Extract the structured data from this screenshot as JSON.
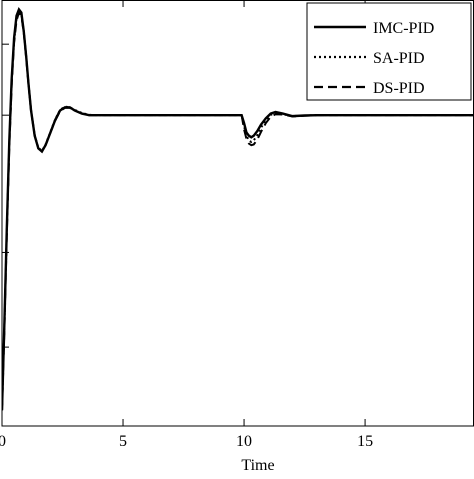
{
  "chart_data": {
    "type": "line",
    "title": "",
    "xlabel": "Time",
    "ylabel": "",
    "xlim": [
      0,
      19.5
    ],
    "ylim": [
      -0.05,
      1.3
    ],
    "x_ticks": [
      0,
      5,
      10,
      15
    ],
    "x_tick_labels": [
      "0",
      "5",
      "10",
      "15"
    ],
    "grid": false,
    "legend_position": "top-right",
    "series": [
      {
        "name": "IMC-PID",
        "line_style": "solid",
        "x": [
          0,
          0.1,
          0.2,
          0.3,
          0.4,
          0.5,
          0.6,
          0.7,
          0.8,
          0.9,
          1.0,
          1.1,
          1.2,
          1.35,
          1.5,
          1.65,
          1.8,
          2.0,
          2.2,
          2.4,
          2.6,
          2.8,
          3.0,
          3.3,
          3.6,
          4.0,
          5.0,
          7.0,
          9.9,
          10.0,
          10.1,
          10.2,
          10.3,
          10.4,
          10.55,
          10.7,
          10.9,
          11.1,
          11.3,
          11.6,
          12.0,
          12.5,
          13.0,
          15.0,
          17.0,
          19.5
        ],
        "y": [
          0.0,
          0.28,
          0.58,
          0.85,
          1.05,
          1.18,
          1.25,
          1.27,
          1.26,
          1.2,
          1.12,
          1.03,
          0.95,
          0.87,
          0.83,
          0.82,
          0.84,
          0.88,
          0.92,
          0.95,
          0.96,
          0.96,
          0.95,
          0.94,
          0.935,
          0.935,
          0.935,
          0.935,
          0.935,
          0.91,
          0.88,
          0.87,
          0.865,
          0.87,
          0.885,
          0.905,
          0.925,
          0.94,
          0.945,
          0.94,
          0.932,
          0.934,
          0.935,
          0.935,
          0.935,
          0.935
        ]
      },
      {
        "name": "SA-PID",
        "line_style": "dotted",
        "x": [
          0,
          0.1,
          0.2,
          0.3,
          0.4,
          0.5,
          0.6,
          0.7,
          0.8,
          0.9,
          1.0,
          1.1,
          1.2,
          1.35,
          1.5,
          1.65,
          1.8,
          2.0,
          2.2,
          2.4,
          2.6,
          2.8,
          3.0,
          3.3,
          3.6,
          4.0,
          5.0,
          7.0,
          9.9,
          10.0,
          10.1,
          10.2,
          10.3,
          10.4,
          10.55,
          10.7,
          10.9,
          11.1,
          11.3,
          11.6,
          12.0,
          12.5,
          13.0,
          15.0,
          17.0,
          19.5
        ],
        "y": [
          0.0,
          0.27,
          0.57,
          0.84,
          1.04,
          1.17,
          1.24,
          1.265,
          1.255,
          1.2,
          1.12,
          1.03,
          0.95,
          0.872,
          0.832,
          0.822,
          0.842,
          0.882,
          0.922,
          0.952,
          0.962,
          0.96,
          0.952,
          0.942,
          0.936,
          0.935,
          0.935,
          0.935,
          0.935,
          0.9,
          0.87,
          0.855,
          0.85,
          0.855,
          0.872,
          0.895,
          0.92,
          0.936,
          0.942,
          0.938,
          0.932,
          0.934,
          0.935,
          0.935,
          0.935,
          0.935
        ]
      },
      {
        "name": "DS-PID",
        "line_style": "dashed",
        "x": [
          0,
          0.1,
          0.2,
          0.3,
          0.4,
          0.5,
          0.6,
          0.7,
          0.8,
          0.9,
          1.0,
          1.1,
          1.2,
          1.35,
          1.5,
          1.65,
          1.8,
          2.0,
          2.2,
          2.4,
          2.6,
          2.8,
          3.0,
          3.3,
          3.6,
          4.0,
          5.0,
          7.0,
          9.9,
          10.0,
          10.1,
          10.2,
          10.3,
          10.4,
          10.55,
          10.7,
          10.9,
          11.1,
          11.3,
          11.6,
          12.0,
          12.5,
          13.0,
          15.0,
          17.0,
          19.5
        ],
        "y": [
          0.0,
          0.26,
          0.56,
          0.83,
          1.03,
          1.165,
          1.235,
          1.26,
          1.25,
          1.195,
          1.115,
          1.028,
          0.948,
          0.871,
          0.83,
          0.82,
          0.84,
          0.88,
          0.918,
          0.948,
          0.958,
          0.958,
          0.95,
          0.94,
          0.935,
          0.935,
          0.935,
          0.935,
          0.935,
          0.89,
          0.86,
          0.845,
          0.84,
          0.842,
          0.858,
          0.882,
          0.91,
          0.93,
          0.938,
          0.937,
          0.931,
          0.933,
          0.935,
          0.935,
          0.935,
          0.935
        ]
      }
    ]
  }
}
